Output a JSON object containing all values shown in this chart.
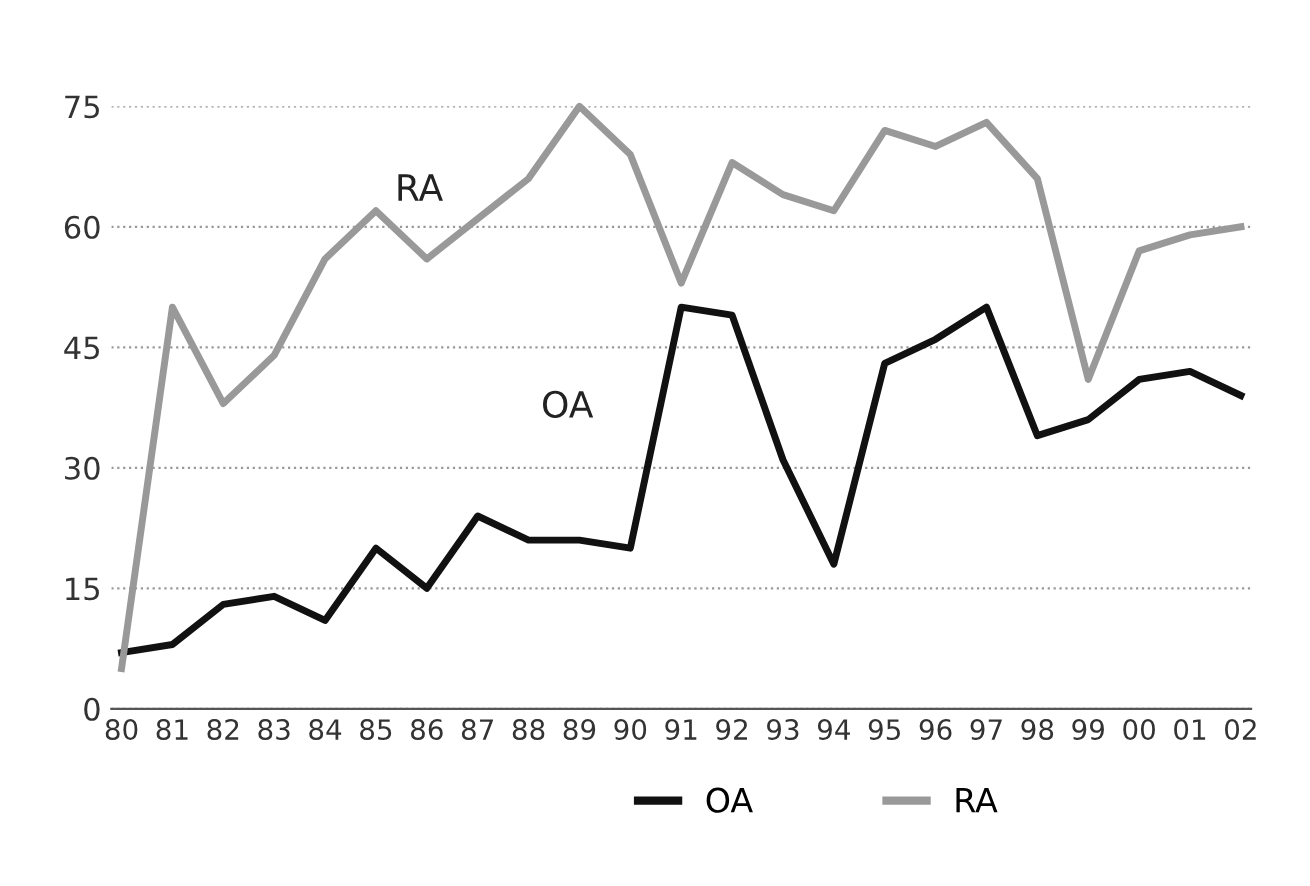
{
  "chart_data": {
    "type": "line",
    "categories": [
      "80",
      "81",
      "82",
      "83",
      "84",
      "85",
      "86",
      "87",
      "88",
      "89",
      "90",
      "91",
      "92",
      "93",
      "94",
      "95",
      "96",
      "97",
      "98",
      "99",
      "00",
      "01",
      "02"
    ],
    "series": [
      {
        "name": "OA",
        "color": "#111111",
        "values": [
          7,
          8,
          13,
          14,
          11,
          20,
          15,
          24,
          21,
          21,
          20,
          50,
          49,
          31,
          18,
          43,
          46,
          50,
          34,
          36,
          41,
          42,
          39
        ]
      },
      {
        "name": "RA",
        "color": "#999999",
        "values": [
          5,
          50,
          38,
          44,
          56,
          62,
          56,
          61,
          66,
          75,
          69,
          53,
          68,
          64,
          62,
          72,
          70,
          73,
          66,
          41,
          57,
          59,
          60
        ]
      }
    ],
    "ylim": [
      0,
      75
    ],
    "yticks": [
      0,
      15,
      30,
      45,
      60,
      75
    ],
    "grid": "y",
    "legend": "bottom",
    "marker": "none",
    "line_style": "solid",
    "annotations": [
      "RA",
      "OA"
    ]
  }
}
